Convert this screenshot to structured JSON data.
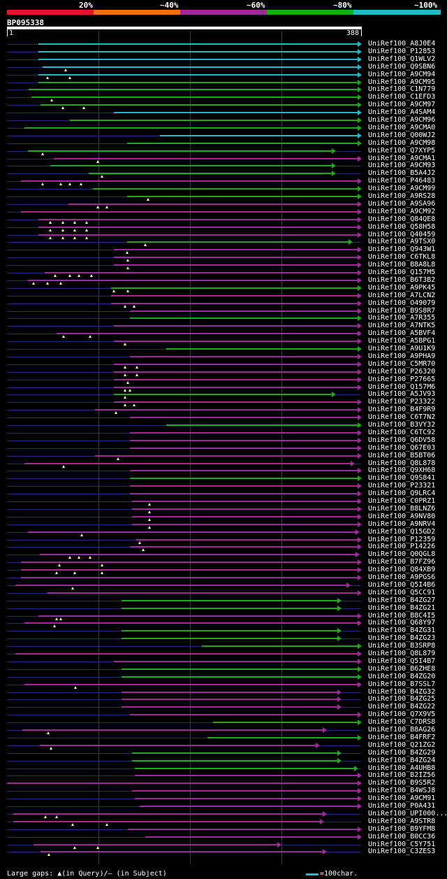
{
  "scale": {
    "labels": [
      "20%",
      "~40%",
      "~60%",
      "~80%",
      "~100%"
    ],
    "colors": [
      "#e8122d",
      "#e8741a",
      "#a02a9c",
      "#1fa81a",
      "#1fbcc8"
    ]
  },
  "query": {
    "id": "BP095338",
    "start": "1",
    "end": "388",
    "length": 388
  },
  "colors": {
    "cyan": "#1fbcc8",
    "green": "#1fa81a",
    "magenta": "#a02a9c",
    "track": "#1f2f6e",
    "gap": "#ffff99"
  },
  "hits": [
    {
      "label": "UniRef100_A8J0E4",
      "start": 35,
      "end": 388,
      "color": "cyan",
      "gaps": []
    },
    {
      "label": "UniRef100_P12853",
      "start": 35,
      "end": 388,
      "color": "cyan",
      "gaps": []
    },
    {
      "label": "UniRef100_Q1WLV2",
      "start": 35,
      "end": 388,
      "color": "cyan",
      "gaps": []
    },
    {
      "label": "UniRef100_Q9SBN6",
      "start": 40,
      "end": 388,
      "color": "cyan",
      "gaps": [
        65
      ]
    },
    {
      "label": "UniRef100_A9CM94",
      "start": 35,
      "end": 388,
      "color": "cyan",
      "gaps": [
        45,
        70
      ]
    },
    {
      "label": "UniRef100_A9CM95",
      "start": 35,
      "end": 388,
      "color": "green",
      "gaps": []
    },
    {
      "label": "UniRef100_C1N779",
      "start": 25,
      "end": 388,
      "color": "green",
      "gaps": []
    },
    {
      "label": "UniRef100_C1EFD3",
      "start": 28,
      "end": 388,
      "color": "green",
      "gaps": [
        50
      ]
    },
    {
      "label": "UniRef100_A9CM97",
      "start": 38,
      "end": 388,
      "color": "green",
      "gaps": [
        62,
        85
      ]
    },
    {
      "label": "UniRef100_A4SAM4",
      "start": 118,
      "end": 388,
      "color": "cyan",
      "gaps": []
    },
    {
      "label": "UniRef100_A9CM96",
      "start": 70,
      "end": 388,
      "color": "green",
      "gaps": []
    },
    {
      "label": "UniRef100_A9CMA0",
      "start": 20,
      "end": 388,
      "color": "green",
      "gaps": []
    },
    {
      "label": "UniRef100_Q00WJ2",
      "start": 168,
      "end": 388,
      "color": "cyan",
      "gaps": []
    },
    {
      "label": "UniRef100_A9CM98",
      "start": 132,
      "end": 388,
      "color": "green",
      "gaps": []
    },
    {
      "label": "UniRef100_Q7XYP5",
      "start": 24,
      "end": 360,
      "color": "green",
      "gaps": [
        40
      ]
    },
    {
      "label": "UniRef100_A9CMA1",
      "start": 52,
      "end": 388,
      "color": "magenta",
      "gaps": [
        100
      ]
    },
    {
      "label": "UniRef100_A9CM93",
      "start": 48,
      "end": 360,
      "color": "green",
      "gaps": []
    },
    {
      "label": "UniRef100_B5A4J2",
      "start": 90,
      "end": 360,
      "color": "green",
      "gaps": [
        105
      ]
    },
    {
      "label": "UniRef100_P46483",
      "start": 16,
      "end": 388,
      "color": "magenta",
      "gaps": [
        40,
        60,
        70,
        82
      ]
    },
    {
      "label": "UniRef100_A9CM99",
      "start": 95,
      "end": 388,
      "color": "green",
      "gaps": []
    },
    {
      "label": "UniRef100_A9RS28",
      "start": 132,
      "end": 388,
      "color": "green",
      "gaps": [
        155
      ]
    },
    {
      "label": "UniRef100_A9SA96",
      "start": 68,
      "end": 388,
      "color": "magenta",
      "gaps": [
        100,
        110
      ]
    },
    {
      "label": "UniRef100_A9CM92",
      "start": 16,
      "end": 388,
      "color": "magenta",
      "gaps": []
    },
    {
      "label": "UniRef100_Q84QE8",
      "start": 35,
      "end": 388,
      "color": "magenta",
      "gaps": [
        48,
        62,
        75,
        88
      ]
    },
    {
      "label": "UniRef100_Q58H58",
      "start": 35,
      "end": 388,
      "color": "magenta",
      "gaps": [
        48,
        62,
        75,
        88
      ]
    },
    {
      "label": "UniRef100_Q40459",
      "start": 35,
      "end": 388,
      "color": "magenta",
      "gaps": [
        48,
        62,
        75,
        88
      ]
    },
    {
      "label": "UniRef100_A9TSX0",
      "start": 132,
      "end": 378,
      "color": "green",
      "gaps": [
        152
      ]
    },
    {
      "label": "UniRef100_Q943W1",
      "start": 118,
      "end": 388,
      "color": "magenta",
      "gaps": [
        132
      ]
    },
    {
      "label": "UniRef100_C6TKL8",
      "start": 118,
      "end": 388,
      "color": "magenta",
      "gaps": [
        133
      ]
    },
    {
      "label": "UniRef100_B8A8L8",
      "start": 118,
      "end": 388,
      "color": "magenta",
      "gaps": [
        133
      ]
    },
    {
      "label": "UniRef100_Q157M5",
      "start": 42,
      "end": 388,
      "color": "magenta",
      "gaps": [
        54,
        70,
        80,
        93
      ]
    },
    {
      "label": "UniRef100_B6T3B2",
      "start": 24,
      "end": 388,
      "color": "magenta",
      "gaps": [
        30,
        45,
        60
      ]
    },
    {
      "label": "UniRef100_A9PK45",
      "start": 115,
      "end": 388,
      "color": "green",
      "gaps": [
        118,
        133
      ]
    },
    {
      "label": "UniRef100_A7LCN2",
      "start": 115,
      "end": 388,
      "color": "magenta",
      "gaps": []
    },
    {
      "label": "UniRef100_O49079",
      "start": 115,
      "end": 388,
      "color": "magenta",
      "gaps": [
        130,
        140
      ]
    },
    {
      "label": "UniRef100_B9S8R7",
      "start": 135,
      "end": 388,
      "color": "magenta",
      "gaps": []
    },
    {
      "label": "UniRef100_A7R355",
      "start": 135,
      "end": 388,
      "color": "green",
      "gaps": []
    },
    {
      "label": "UniRef100_A7NTK5",
      "start": 118,
      "end": 388,
      "color": "magenta",
      "gaps": []
    },
    {
      "label": "UniRef100_A5BVF4",
      "start": 55,
      "end": 388,
      "color": "magenta",
      "gaps": [
        63,
        92
      ]
    },
    {
      "label": "UniRef100_A5BPG1",
      "start": 118,
      "end": 388,
      "color": "magenta",
      "gaps": [
        130
      ]
    },
    {
      "label": "UniRef100_A9U1K9",
      "start": 175,
      "end": 388,
      "color": "green",
      "gaps": []
    },
    {
      "label": "UniRef100_A9PHA9",
      "start": 135,
      "end": 388,
      "color": "magenta",
      "gaps": []
    },
    {
      "label": "UniRef100_C5MR70",
      "start": 118,
      "end": 388,
      "color": "magenta",
      "gaps": [
        130,
        143
      ]
    },
    {
      "label": "UniRef100_P26320",
      "start": 118,
      "end": 388,
      "color": "magenta",
      "gaps": [
        130,
        143
      ]
    },
    {
      "label": "UniRef100_P27665",
      "start": 118,
      "end": 388,
      "color": "magenta",
      "gaps": [
        133
      ]
    },
    {
      "label": "UniRef100_Q157M6",
      "start": 118,
      "end": 388,
      "color": "magenta",
      "gaps": [
        130,
        135
      ]
    },
    {
      "label": "UniRef100_A5JV93",
      "start": 118,
      "end": 360,
      "color": "green",
      "gaps": [
        130
      ]
    },
    {
      "label": "UniRef100_P23322",
      "start": 118,
      "end": 388,
      "color": "magenta",
      "gaps": [
        130,
        140
      ]
    },
    {
      "label": "UniRef100_B4F9R9",
      "start": 97,
      "end": 388,
      "color": "magenta",
      "gaps": [
        120
      ]
    },
    {
      "label": "UniRef100_C6T7N2",
      "start": 135,
      "end": 388,
      "color": "magenta",
      "gaps": []
    },
    {
      "label": "UniRef100_B3VY32",
      "start": 175,
      "end": 388,
      "color": "green",
      "gaps": []
    },
    {
      "label": "UniRef100_C6TC92",
      "start": 135,
      "end": 388,
      "color": "magenta",
      "gaps": []
    },
    {
      "label": "UniRef100_Q6DV58",
      "start": 135,
      "end": 388,
      "color": "magenta",
      "gaps": []
    },
    {
      "label": "UniRef100_Q67E03",
      "start": 135,
      "end": 388,
      "color": "magenta",
      "gaps": []
    },
    {
      "label": "UniRef100_B5BT06",
      "start": 97,
      "end": 388,
      "color": "magenta",
      "gaps": [
        122
      ]
    },
    {
      "label": "UniRef100_Q8L878",
      "start": 20,
      "end": 380,
      "color": "magenta",
      "gaps": [
        63
      ]
    },
    {
      "label": "UniRef100_Q9XH68",
      "start": 135,
      "end": 388,
      "color": "magenta",
      "gaps": []
    },
    {
      "label": "UniRef100_Q9S841",
      "start": 135,
      "end": 388,
      "color": "green",
      "gaps": []
    },
    {
      "label": "UniRef100_P23321",
      "start": 135,
      "end": 388,
      "color": "magenta",
      "gaps": []
    },
    {
      "label": "UniRef100_Q9LRC4",
      "start": 135,
      "end": 388,
      "color": "magenta",
      "gaps": []
    },
    {
      "label": "UniRef100_C0PRZ1",
      "start": 138,
      "end": 388,
      "color": "magenta",
      "gaps": [
        157
      ]
    },
    {
      "label": "UniRef100_B8LNZ6",
      "start": 138,
      "end": 388,
      "color": "magenta",
      "gaps": [
        157
      ]
    },
    {
      "label": "UniRef100_A9NV80",
      "start": 138,
      "end": 388,
      "color": "magenta",
      "gaps": [
        157
      ]
    },
    {
      "label": "UniRef100_A9NRV4",
      "start": 138,
      "end": 388,
      "color": "magenta",
      "gaps": [
        157
      ]
    },
    {
      "label": "UniRef100_Q15GD2",
      "start": 24,
      "end": 386,
      "color": "magenta",
      "gaps": [
        83
      ]
    },
    {
      "label": "UniRef100_P12359",
      "start": 142,
      "end": 388,
      "color": "magenta",
      "gaps": [
        146
      ]
    },
    {
      "label": "UniRef100_P14226",
      "start": 135,
      "end": 388,
      "color": "magenta",
      "gaps": [
        150
      ]
    },
    {
      "label": "UniRef100_Q0QGL8",
      "start": 37,
      "end": 386,
      "color": "magenta",
      "gaps": [
        70,
        80,
        92
      ]
    },
    {
      "label": "UniRef100_B7FZ96",
      "start": 16,
      "end": 388,
      "color": "magenta",
      "gaps": [
        58,
        105
      ]
    },
    {
      "label": "UniRef100_Q84XB9",
      "start": 16,
      "end": 388,
      "color": "magenta",
      "gaps": [
        55,
        75,
        105
      ]
    },
    {
      "label": "UniRef100_A9PGS6",
      "start": 16,
      "end": 388,
      "color": "magenta",
      "gaps": []
    },
    {
      "label": "UniRef100_Q5I4B6",
      "start": 10,
      "end": 376,
      "color": "magenta",
      "gaps": [
        73
      ]
    },
    {
      "label": "UniRef100_Q5CC91",
      "start": 45,
      "end": 388,
      "color": "magenta",
      "gaps": []
    },
    {
      "label": "UniRef100_B4ZG27",
      "start": 126,
      "end": 366,
      "color": "green",
      "gaps": []
    },
    {
      "label": "UniRef100_B4ZG21",
      "start": 126,
      "end": 366,
      "color": "green",
      "gaps": []
    },
    {
      "label": "UniRef100_B8C4I5",
      "start": 35,
      "end": 388,
      "color": "magenta",
      "gaps": [
        55,
        60
      ]
    },
    {
      "label": "UniRef100_Q68Y97",
      "start": 20,
      "end": 388,
      "color": "magenta",
      "gaps": [
        53
      ]
    },
    {
      "label": "UniRef100_B4ZG31",
      "start": 126,
      "end": 366,
      "color": "green",
      "gaps": []
    },
    {
      "label": "UniRef100_B4ZG23",
      "start": 126,
      "end": 366,
      "color": "green",
      "gaps": []
    },
    {
      "label": "UniRef100_B3SRP8",
      "start": 214,
      "end": 388,
      "color": "green",
      "gaps": []
    },
    {
      "label": "UniRef100_Q8L879",
      "start": 10,
      "end": 388,
      "color": "magenta",
      "gaps": []
    },
    {
      "label": "UniRef100_Q5I4B7",
      "start": 118,
      "end": 388,
      "color": "magenta",
      "gaps": []
    },
    {
      "label": "UniRef100_B6ZHE8",
      "start": 126,
      "end": 388,
      "color": "green",
      "gaps": []
    },
    {
      "label": "UniRef100_B4ZG20",
      "start": 126,
      "end": 388,
      "color": "green",
      "gaps": []
    },
    {
      "label": "UniRef100_B7SSL7",
      "start": 20,
      "end": 388,
      "color": "magenta",
      "gaps": [
        76
      ]
    },
    {
      "label": "UniRef100_B4ZG32",
      "start": 126,
      "end": 366,
      "color": "magenta",
      "gaps": []
    },
    {
      "label": "UniRef100_B4ZG25",
      "start": 126,
      "end": 366,
      "color": "magenta",
      "gaps": []
    },
    {
      "label": "UniRef100_B4ZG22",
      "start": 126,
      "end": 366,
      "color": "magenta",
      "gaps": []
    },
    {
      "label": "UniRef100_Q7X9V5",
      "start": 135,
      "end": 388,
      "color": "magenta",
      "gaps": []
    },
    {
      "label": "UniRef100_C7DRS8",
      "start": 226,
      "end": 388,
      "color": "green",
      "gaps": []
    },
    {
      "label": "UniRef100_B8AG26",
      "start": 18,
      "end": 350,
      "color": "magenta",
      "gaps": [
        46
      ]
    },
    {
      "label": "UniRef100_B4FRF2",
      "start": 220,
      "end": 388,
      "color": "green",
      "gaps": []
    },
    {
      "label": "UniRef100_Q21ZG2",
      "start": 37,
      "end": 342,
      "color": "magenta",
      "gaps": [
        49
      ]
    },
    {
      "label": "UniRef100_B4ZG29",
      "start": 138,
      "end": 366,
      "color": "green",
      "gaps": []
    },
    {
      "label": "UniRef100_B4ZG24",
      "start": 138,
      "end": 366,
      "color": "green",
      "gaps": []
    },
    {
      "label": "UniRef100_A4UHB8",
      "start": 141,
      "end": 384,
      "color": "green",
      "gaps": []
    },
    {
      "label": "UniRef100_B2IZ56",
      "start": 141,
      "end": 388,
      "color": "magenta",
      "gaps": []
    },
    {
      "label": "UniRef100_B9S5R2",
      "start": 1,
      "end": 388,
      "color": "magenta",
      "gaps": []
    },
    {
      "label": "UniRef100_B4WSJ8",
      "start": 138,
      "end": 388,
      "color": "magenta",
      "gaps": []
    },
    {
      "label": "UniRef100_A9CM91",
      "start": 141,
      "end": 388,
      "color": "magenta",
      "gaps": []
    },
    {
      "label": "UniRef100_P0A431",
      "start": 146,
      "end": 388,
      "color": "magenta",
      "gaps": []
    },
    {
      "label": "UniRef100_UPI000...",
      "start": 8,
      "end": 350,
      "color": "magenta",
      "gaps": [
        43,
        55
      ]
    },
    {
      "label": "UniRef100_A9STR8",
      "start": 8,
      "end": 347,
      "color": "magenta",
      "gaps": [
        73,
        110
      ]
    },
    {
      "label": "UniRef100_B9YFM8",
      "start": 133,
      "end": 388,
      "color": "magenta",
      "gaps": []
    },
    {
      "label": "UniRef100_B0CC36",
      "start": 152,
      "end": 388,
      "color": "magenta",
      "gaps": []
    },
    {
      "label": "UniRef100_C5Y751",
      "start": 30,
      "end": 300,
      "color": "magenta",
      "gaps": [
        75,
        100
      ]
    },
    {
      "label": "UniRef100_C3ZES3",
      "start": 38,
      "end": 350,
      "color": "magenta",
      "gaps": [
        47
      ]
    }
  ],
  "footer": {
    "gaps_text": "Large gaps: ▲(in Query)/— (in Subject)",
    "legend_text": "=100char."
  }
}
